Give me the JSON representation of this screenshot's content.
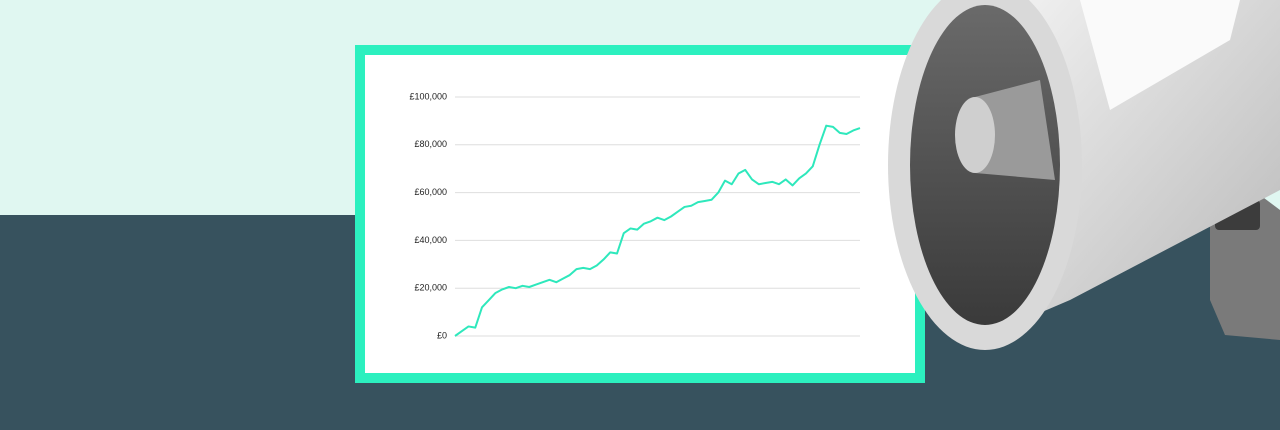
{
  "chart_data": {
    "type": "line",
    "categories": [
      null,
      null,
      null,
      null,
      null,
      null,
      null,
      null,
      null,
      null,
      null,
      null,
      null,
      null,
      null,
      null,
      null,
      null,
      null,
      null,
      null,
      null,
      null,
      null,
      null,
      null,
      null,
      null,
      null,
      null,
      null,
      null,
      null,
      null,
      null,
      null,
      null,
      null,
      null,
      null,
      null,
      null,
      null,
      null,
      null,
      null,
      null,
      null,
      null,
      null,
      null,
      null,
      null,
      null,
      null,
      null,
      null,
      null,
      null,
      null,
      null
    ],
    "series": [
      {
        "color": "#2ee8bc",
        "values": [
          0,
          2000,
          4000,
          3500,
          12000,
          15000,
          18000,
          19500,
          20500,
          20000,
          21000,
          20500,
          21500,
          22500,
          23500,
          22500,
          24000,
          25500,
          28000,
          28500,
          28000,
          29500,
          32000,
          35000,
          34500,
          43000,
          45000,
          44500,
          47000,
          48000,
          49500,
          48500,
          50000,
          52000,
          54000,
          54500,
          56000,
          56500,
          57000,
          60000,
          65000,
          63500,
          68000,
          69500,
          65500,
          63500,
          64000,
          64500,
          63500,
          65500,
          63000,
          66000,
          68000,
          71000,
          80000,
          88000,
          87500,
          85000,
          84500,
          86000,
          87000
        ]
      }
    ],
    "ylim": [
      0,
      100000
    ],
    "yticks": [
      {
        "value": 0,
        "label": "£0"
      },
      {
        "value": 20000,
        "label": "£20,000"
      },
      {
        "value": 40000,
        "label": "£40,000"
      },
      {
        "value": 60000,
        "label": "£60,000"
      },
      {
        "value": 80000,
        "label": "£80,000"
      },
      {
        "value": 100000,
        "label": "£100,000"
      }
    ],
    "grid": true
  }
}
